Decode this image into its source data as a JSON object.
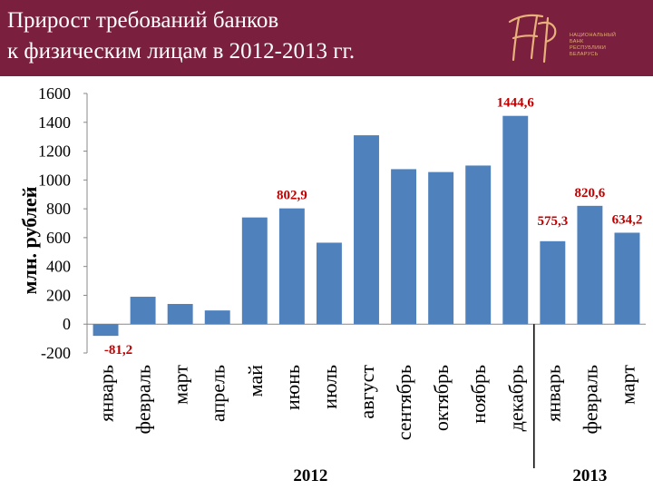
{
  "title": {
    "line1": "Прирост требований банков",
    "line2": "к физическим лицам в 2012-2013 гг."
  },
  "logo": {
    "lines": [
      "НАЦИОНАЛЬНЫЙ",
      "БАНК",
      "РЕСПУБЛИКИ",
      "БЕЛАРУСЬ"
    ]
  },
  "colors": {
    "header": "#7a1f3d",
    "bar": "#4f81bd",
    "label": "#c00000",
    "logo": "#e8b07a"
  },
  "chart_data": {
    "type": "bar",
    "ylabel": "млн. рублей",
    "ylim": [
      -200,
      1600
    ],
    "yticks": [
      -200,
      0,
      200,
      400,
      600,
      800,
      1000,
      1200,
      1400,
      1600
    ],
    "grid": false,
    "categories": [
      "январь",
      "февраль",
      "март",
      "апрель",
      "май",
      "июнь",
      "июль",
      "август",
      "сентябрь",
      "октябрь",
      "ноябрь",
      "декабрь",
      "январь",
      "февраль",
      "март"
    ],
    "values": [
      -81.2,
      190,
      140,
      95,
      740,
      802.9,
      565,
      1310,
      1075,
      1055,
      1100,
      1444.6,
      575.3,
      820.6,
      634.2
    ],
    "data_labels": [
      {
        "index": 0,
        "text": "-81,2"
      },
      {
        "index": 5,
        "text": "802,9"
      },
      {
        "index": 11,
        "text": "1444,6"
      },
      {
        "index": 12,
        "text": "575,3"
      },
      {
        "index": 13,
        "text": "820,6"
      },
      {
        "index": 14,
        "text": "634,2"
      }
    ],
    "groups": [
      {
        "label": "2012",
        "from": 0,
        "to": 11
      },
      {
        "label": "2013",
        "from": 12,
        "to": 14
      }
    ]
  }
}
